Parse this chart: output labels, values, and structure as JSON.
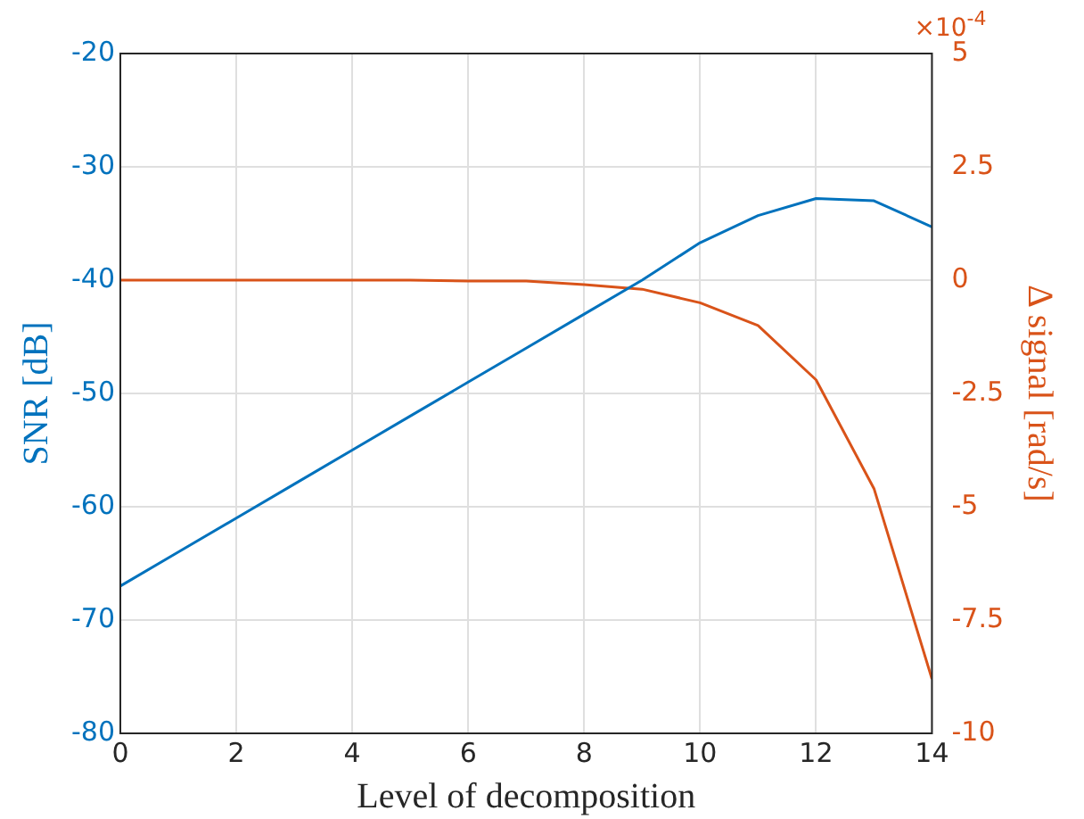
{
  "chart_data": {
    "type": "line",
    "xlabel": "Level of decomposition",
    "ylabel": "SNR [dB]",
    "y2label": "Δ signal [rad/s]",
    "x": [
      0,
      1,
      2,
      3,
      4,
      5,
      6,
      7,
      8,
      9,
      10,
      11,
      12,
      13,
      14
    ],
    "series": [
      {
        "color": "#0072bd",
        "values": [
          -67,
          -64,
          -61,
          -58,
          -55,
          -52,
          -49,
          -46,
          -43,
          -40,
          -36.7,
          -34.3,
          -32.8,
          -33,
          -35.3
        ]
      },
      {
        "color": "#d95319",
        "axis": "y2",
        "values": [
          0,
          0,
          0,
          0,
          0,
          0,
          -0.02,
          -0.02,
          -0.1,
          -0.2,
          -0.5,
          -1,
          -2.2,
          -4.6,
          -8.8
        ]
      }
    ],
    "xlim": [
      0,
      14
    ],
    "xticks": [
      0,
      2,
      4,
      6,
      8,
      10,
      12,
      14
    ],
    "ylim": [
      -80,
      -20
    ],
    "yticks": [
      -80,
      -70,
      -60,
      -50,
      -40,
      -30,
      -20
    ],
    "y2lim": [
      -10,
      5
    ],
    "y2ticks": [
      -10,
      -7.5,
      -5,
      -2.5,
      0,
      2.5,
      5
    ],
    "annotations": [
      "×10$^{-4}$"
    ],
    "grid": true,
    "legend": false,
    "marker": "none",
    "line_style": "solid"
  }
}
